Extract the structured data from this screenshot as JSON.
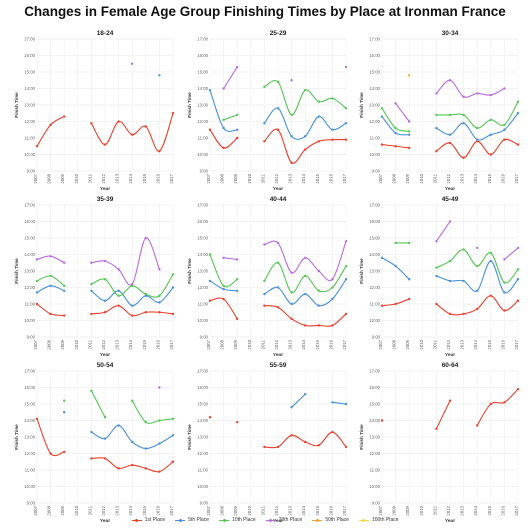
{
  "title": "Changes in Female Age Group Finishing Times by Place at Ironman France",
  "legend": [
    {
      "name": "1st Place",
      "color": "#e8412e"
    },
    {
      "name": "5th Place",
      "color": "#4a90d9"
    },
    {
      "name": "10th Place",
      "color": "#55c555"
    },
    {
      "name": "20th Place",
      "color": "#b56ce0"
    },
    {
      "name": "50th Place",
      "color": "#f2a03c"
    },
    {
      "name": "100th Place",
      "color": "#f0d548"
    }
  ],
  "chart_data": {
    "type": "line",
    "xlabel": "Year",
    "ylabel": "Finish Time",
    "x": [
      "2007",
      "2008",
      "2009",
      "2010",
      "2011",
      "2012",
      "2013",
      "2014",
      "2015",
      "2016",
      "2017"
    ],
    "y_ticks": [
      "9:00",
      "10:00",
      "11:00",
      "12:00",
      "13:00",
      "14:00",
      "15:00",
      "16:00",
      "17:00"
    ],
    "ylim": [
      9,
      17
    ],
    "panels": [
      {
        "title": "18-24",
        "series": [
          {
            "name": "1st Place",
            "values": [
              10.5,
              11.8,
              12.3,
              null,
              11.9,
              10.6,
              12.0,
              11.2,
              11.7,
              10.2,
              12.5
            ]
          },
          {
            "name": "5th Place",
            "values": [
              null,
              null,
              null,
              null,
              null,
              null,
              null,
              null,
              null,
              14.8,
              null
            ]
          },
          {
            "name": "20th Place",
            "values": [
              null,
              null,
              null,
              null,
              null,
              null,
              null,
              15.5,
              null,
              null,
              null
            ]
          }
        ]
      },
      {
        "title": "25-29",
        "series": [
          {
            "name": "1st Place",
            "values": [
              11.5,
              10.4,
              11.0,
              null,
              10.8,
              11.5,
              9.5,
              10.3,
              10.8,
              10.9,
              10.9
            ]
          },
          {
            "name": "5th Place",
            "values": [
              13.9,
              11.6,
              11.5,
              null,
              11.9,
              12.8,
              11.1,
              11.1,
              12.3,
              11.5,
              11.9
            ]
          },
          {
            "name": "10th Place",
            "values": [
              null,
              12.1,
              12.4,
              null,
              14.1,
              14.4,
              12.4,
              13.9,
              13.2,
              13.4,
              12.8
            ]
          },
          {
            "name": "20th Place",
            "values": [
              null,
              14.0,
              15.3,
              null,
              null,
              null,
              14.5,
              null,
              null,
              null,
              15.3
            ]
          }
        ]
      },
      {
        "title": "30-34",
        "series": [
          {
            "name": "1st Place",
            "values": [
              10.6,
              10.5,
              10.4,
              null,
              10.2,
              10.7,
              9.8,
              10.8,
              10.0,
              10.9,
              10.6
            ]
          },
          {
            "name": "5th Place",
            "values": [
              12.3,
              11.3,
              11.2,
              null,
              11.6,
              11.2,
              11.9,
              10.9,
              11.2,
              11.5,
              12.5
            ]
          },
          {
            "name": "10th Place",
            "values": [
              12.8,
              11.6,
              11.4,
              null,
              12.4,
              12.4,
              12.4,
              11.6,
              12.1,
              11.8,
              13.2
            ]
          },
          {
            "name": "20th Place",
            "values": [
              null,
              13.1,
              12.0,
              null,
              13.7,
              14.5,
              13.5,
              13.7,
              13.6,
              14.0,
              null
            ]
          },
          {
            "name": "50th Place",
            "values": [
              null,
              null,
              14.8,
              null,
              null,
              null,
              null,
              null,
              null,
              null,
              null
            ]
          }
        ]
      },
      {
        "title": "35-39",
        "series": [
          {
            "name": "1st Place",
            "values": [
              11.0,
              10.4,
              10.3,
              null,
              10.4,
              10.5,
              10.9,
              10.3,
              10.5,
              10.5,
              10.4
            ]
          },
          {
            "name": "5th Place",
            "values": [
              11.7,
              12.1,
              11.8,
              null,
              11.8,
              11.2,
              11.8,
              10.9,
              11.5,
              11.1,
              12.0
            ]
          },
          {
            "name": "10th Place",
            "values": [
              12.4,
              12.7,
              12.1,
              null,
              12.2,
              12.5,
              11.5,
              12.1,
              11.6,
              11.5,
              12.8
            ]
          },
          {
            "name": "20th Place",
            "values": [
              13.7,
              13.9,
              13.5,
              null,
              13.5,
              13.6,
              13.1,
              12.2,
              15.0,
              13.1,
              null
            ]
          }
        ]
      },
      {
        "title": "40-44",
        "series": [
          {
            "name": "1st Place",
            "values": [
              11.2,
              11.3,
              10.1,
              null,
              10.9,
              10.8,
              10.1,
              9.7,
              9.7,
              9.7,
              10.4
            ]
          },
          {
            "name": "5th Place",
            "values": [
              12.4,
              11.9,
              11.8,
              null,
              11.6,
              12.0,
              11.0,
              11.6,
              10.9,
              11.3,
              12.5
            ]
          },
          {
            "name": "10th Place",
            "values": [
              14.0,
              12.1,
              12.5,
              null,
              12.4,
              13.5,
              11.7,
              12.7,
              11.8,
              12.0,
              13.3
            ]
          },
          {
            "name": "20th Place",
            "values": [
              null,
              13.8,
              13.7,
              null,
              14.6,
              14.7,
              12.9,
              13.8,
              13.0,
              12.5,
              14.8
            ]
          }
        ]
      },
      {
        "title": "45-49",
        "series": [
          {
            "name": "1st Place",
            "values": [
              10.9,
              11.0,
              11.3,
              null,
              11.0,
              10.4,
              10.4,
              10.7,
              11.5,
              10.6,
              11.2
            ]
          },
          {
            "name": "5th Place",
            "values": [
              13.8,
              13.3,
              12.5,
              null,
              12.7,
              12.4,
              12.4,
              11.8,
              13.6,
              11.7,
              12.5
            ]
          },
          {
            "name": "10th Place",
            "values": [
              null,
              14.7,
              14.7,
              null,
              13.2,
              13.6,
              14.3,
              13.3,
              14.1,
              12.3,
              13.1
            ]
          },
          {
            "name": "20th Place",
            "values": [
              null,
              null,
              null,
              null,
              14.8,
              16.0,
              null,
              14.4,
              null,
              13.7,
              14.4
            ]
          }
        ]
      },
      {
        "title": "50-54",
        "series": [
          {
            "name": "1st Place",
            "values": [
              14.1,
              12.0,
              12.1,
              null,
              11.7,
              11.7,
              11.1,
              11.3,
              11.1,
              10.9,
              11.5
            ]
          },
          {
            "name": "5th Place",
            "values": [
              null,
              null,
              14.5,
              null,
              13.3,
              12.9,
              13.7,
              12.7,
              12.3,
              12.6,
              13.1
            ]
          },
          {
            "name": "10th Place",
            "values": [
              null,
              null,
              15.2,
              null,
              15.8,
              14.2,
              null,
              15.2,
              13.9,
              14.0,
              14.1
            ]
          },
          {
            "name": "20th Place",
            "values": [
              null,
              null,
              null,
              null,
              null,
              null,
              null,
              null,
              null,
              16.0,
              null
            ]
          }
        ]
      },
      {
        "title": "55-59",
        "series": [
          {
            "name": "1st Place",
            "values": [
              14.2,
              null,
              13.9,
              null,
              12.4,
              12.4,
              13.1,
              12.7,
              12.5,
              13.3,
              12.4
            ]
          },
          {
            "name": "5th Place",
            "values": [
              null,
              null,
              null,
              null,
              null,
              null,
              14.8,
              15.6,
              null,
              15.1,
              15.0
            ]
          }
        ]
      },
      {
        "title": "60-64",
        "series": [
          {
            "name": "1st Place",
            "values": [
              14.0,
              null,
              null,
              null,
              13.5,
              15.2,
              null,
              13.7,
              15.0,
              15.1,
              15.9
            ]
          }
        ]
      }
    ]
  }
}
